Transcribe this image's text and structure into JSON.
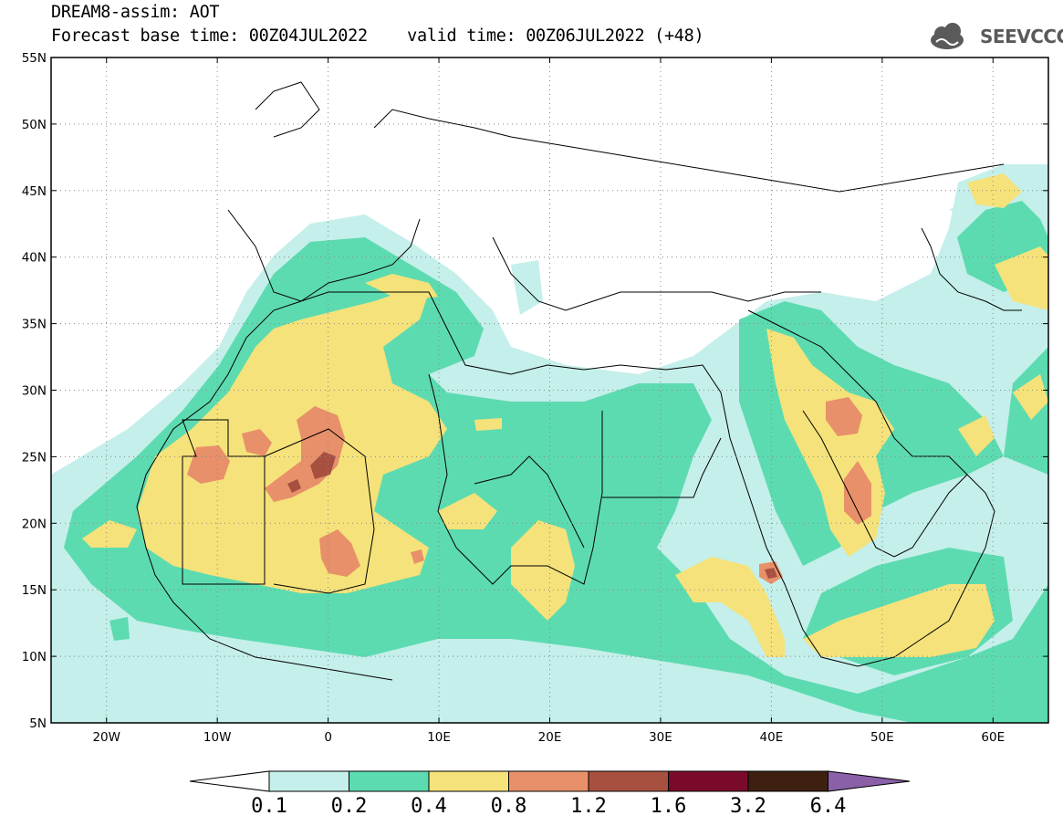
{
  "title": {
    "line1": "DREAM8-assim: AOT",
    "line2": "Forecast base time: 00Z04JUL2022    valid time: 00Z06JUL2022 (+48)"
  },
  "logo": {
    "text": "SEEVCCC",
    "icon": "cloud-icon"
  },
  "map": {
    "lon_range": [
      -25,
      65
    ],
    "lat_range": [
      5,
      55
    ],
    "lat_ticks": [
      {
        "lat": 55,
        "label": "55N"
      },
      {
        "lat": 50,
        "label": "50N"
      },
      {
        "lat": 45,
        "label": "45N"
      },
      {
        "lat": 40,
        "label": "40N"
      },
      {
        "lat": 35,
        "label": "35N"
      },
      {
        "lat": 30,
        "label": "30N"
      },
      {
        "lat": 25,
        "label": "25N"
      },
      {
        "lat": 20,
        "label": "20N"
      },
      {
        "lat": 15,
        "label": "15N"
      },
      {
        "lat": 10,
        "label": "10N"
      },
      {
        "lat": 5,
        "label": "5N"
      }
    ],
    "lon_ticks": [
      {
        "lon": -20,
        "label": "20W"
      },
      {
        "lon": -10,
        "label": "10W"
      },
      {
        "lon": 0,
        "label": "0"
      },
      {
        "lon": 10,
        "label": "10E"
      },
      {
        "lon": 20,
        "label": "20E"
      },
      {
        "lon": 30,
        "label": "30E"
      },
      {
        "lon": 40,
        "label": "40E"
      },
      {
        "lon": 50,
        "label": "50E"
      },
      {
        "lon": 60,
        "label": "60E"
      }
    ],
    "gridlines": "dotted"
  },
  "colorbar": {
    "labels": [
      "0.1",
      "0.2",
      "0.4",
      "0.8",
      "1.2",
      "1.6",
      "3.2",
      "6.4"
    ],
    "colors": [
      "#ffffff",
      "#c4efea",
      "#5ddbb0",
      "#f5e27a",
      "#e8906a",
      "#a85040",
      "#7a0a2a",
      "#3e2010",
      "#8a60a8"
    ]
  },
  "colors": {
    "lvl1": "#c4efea",
    "lvl2": "#5ddbb0",
    "lvl3": "#f5e27a",
    "lvl4": "#e8906a",
    "lvl5": "#a85040",
    "lvl6": "#7a0a2a"
  }
}
